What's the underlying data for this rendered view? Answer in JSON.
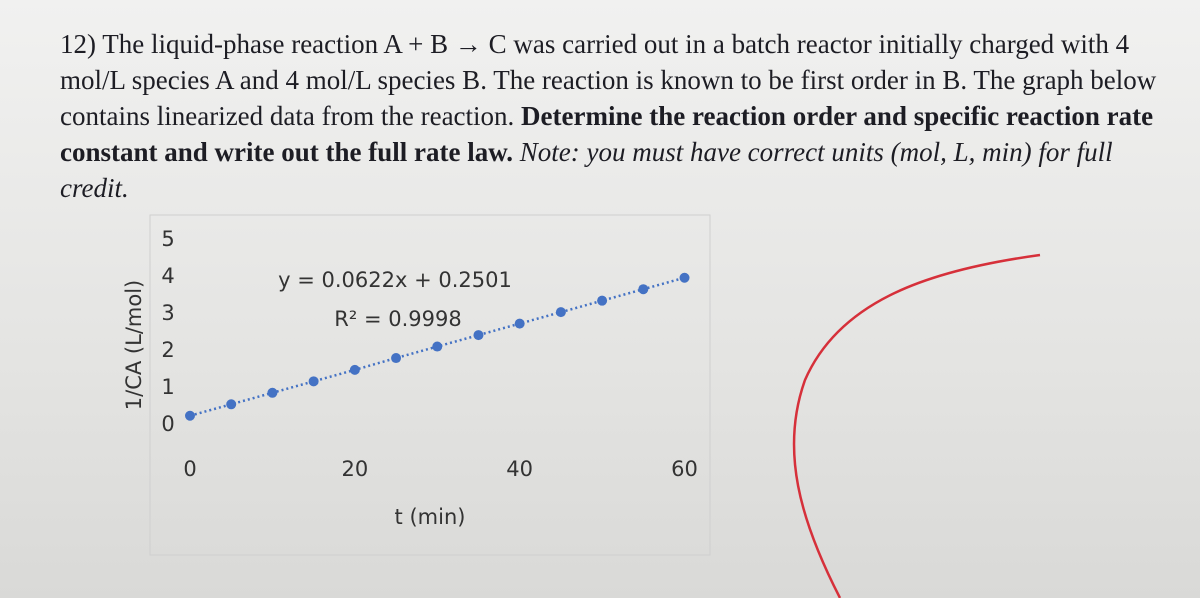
{
  "question": {
    "text": "12) The liquid-phase reaction A + B → C was carried out in a batch reactor initially charged with 4 mol/L species A and 4 mol/L species B. The reaction is known to be first order in B. The graph below contains linearized data from the reaction. ",
    "bold": "Determine the reaction order and specific reaction rate constant and write out the full rate law.",
    "italic": " Note: you must have correct units (mol, L, min) for full credit."
  },
  "chart_data": {
    "type": "scatter",
    "x_label": "t (min)",
    "y_label": "1/CA (L/mol)",
    "annotations": [
      "y = 0.0622x + 0.2501",
      "R² = 0.9998"
    ],
    "line_style": "dotted",
    "series": [
      {
        "color": "#4472c4",
        "x": [
          0,
          5,
          10,
          15,
          20,
          25,
          30,
          35,
          40,
          45,
          50,
          55,
          60
        ],
        "values": [
          0.25,
          0.56,
          0.87,
          1.18,
          1.49,
          1.81,
          2.12,
          2.43,
          2.74,
          3.05,
          3.36,
          3.67,
          3.98
        ]
      }
    ],
    "xlim": [
      0,
      62
    ],
    "ylim": [
      0,
      5
    ],
    "xticks": [
      0,
      20,
      40,
      60
    ],
    "yticks": [
      0,
      1,
      2,
      3,
      4,
      5
    ]
  }
}
